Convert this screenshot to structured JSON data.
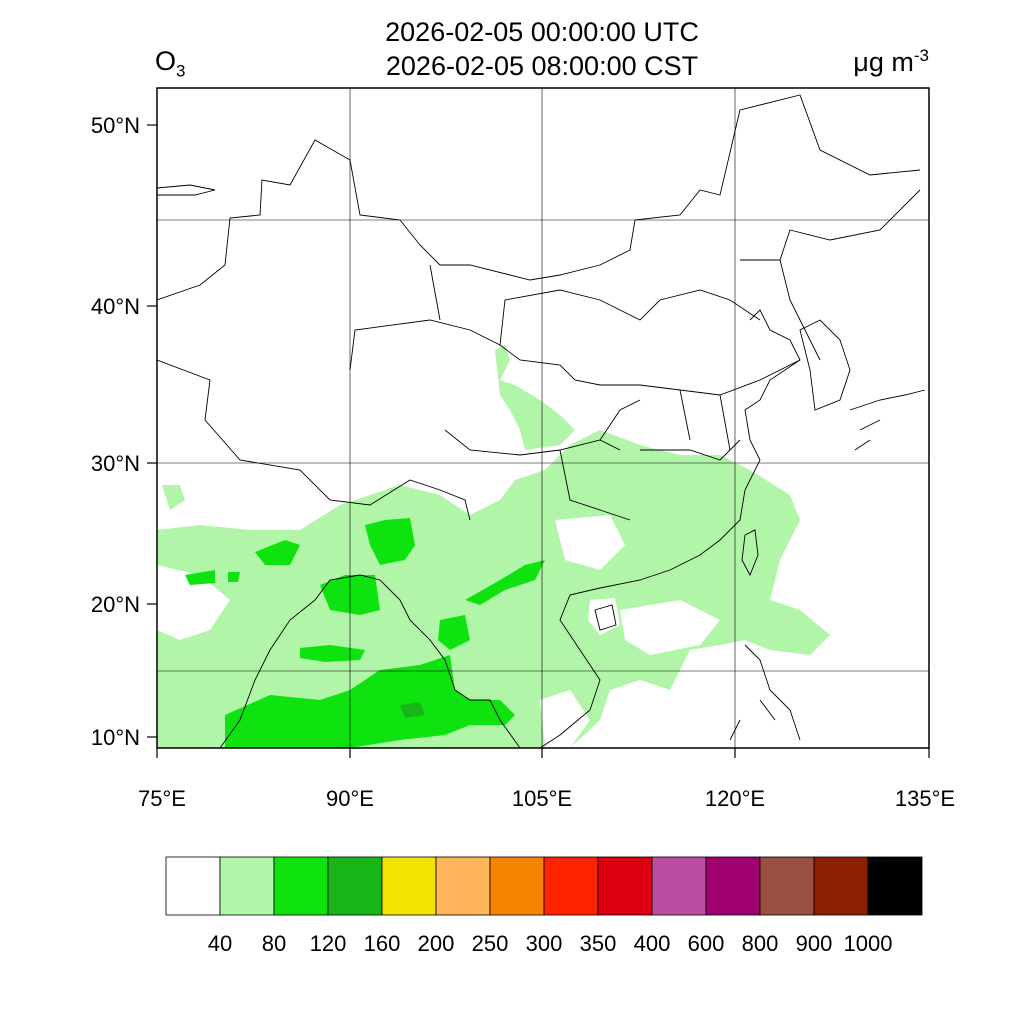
{
  "title": {
    "line1": "2026-02-05 00:00:00 UTC",
    "line2": "2026-02-05 08:00:00 CST"
  },
  "variable": {
    "label": "O",
    "subscript": "3"
  },
  "units": {
    "base": "μg m",
    "exponent": "-3"
  },
  "axes": {
    "lon_labels": [
      "75°E",
      "90°E",
      "105°E",
      "120°E",
      "135°E"
    ],
    "lat_labels": [
      "50°N",
      "40°N",
      "30°N",
      "20°N",
      "10°N"
    ]
  },
  "colorbar": {
    "colors": [
      "#ffffff",
      "#b0f5a8",
      "#0fe30f",
      "#17b517",
      "#f2e300",
      "#ffb55a",
      "#f58500",
      "#ff2200",
      "#dd0010",
      "#bb4ea0",
      "#a00070",
      "#9a5040",
      "#8a2000",
      "#000000"
    ],
    "labels": [
      "40",
      "80",
      "120",
      "160",
      "200",
      "250",
      "300",
      "350",
      "400",
      "600",
      "800",
      "900",
      "1000"
    ]
  }
}
